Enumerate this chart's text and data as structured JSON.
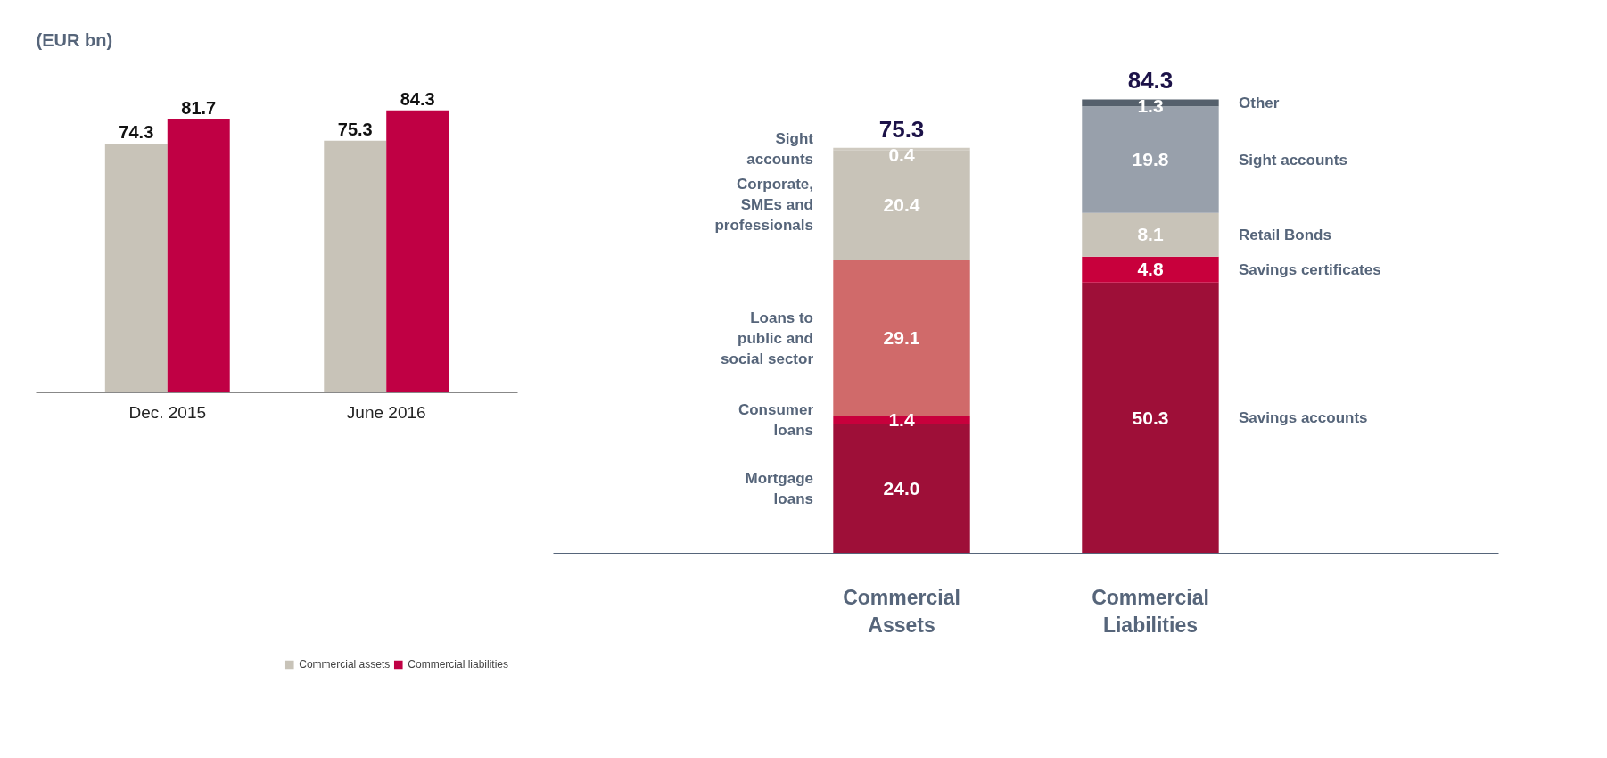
{
  "chart_data": [
    {
      "type": "bar",
      "title": "(EUR bn)",
      "categories": [
        "Dec. 2015",
        "June 2016"
      ],
      "series": [
        {
          "name": "Commercial assets",
          "color": "#c8c3b8",
          "values": [
            74.3,
            75.3
          ]
        },
        {
          "name": "Commercial liabilities",
          "color": "#c00044",
          "values": [
            81.7,
            84.3
          ]
        }
      ],
      "data_labels": true,
      "legend": "bottom",
      "grid": false
    },
    {
      "type": "bar",
      "stacked": true,
      "categories": [
        "Commercial Assets",
        "Commercial Liabilities"
      ],
      "series": [
        {
          "name": "Mortgage loans",
          "color": "#9e0f38",
          "values": [
            24.0,
            null
          ],
          "value_labels": [
            "24.0",
            null
          ]
        },
        {
          "name": "Consumer loans",
          "color": "#c8003c",
          "values": [
            1.4,
            null
          ],
          "value_labels": [
            "1.4",
            null
          ]
        },
        {
          "name": "Loans to public and social sector",
          "color": "#d06a6a",
          "values": [
            29.1,
            null
          ],
          "value_labels": [
            "29.1",
            null
          ]
        },
        {
          "name": "Corporate, SMEs and professionals",
          "color": "#c8c3b8",
          "values": [
            20.4,
            null
          ],
          "value_labels": [
            "20.4",
            null
          ]
        },
        {
          "name": "Sight accounts",
          "color": "#cfcac0",
          "values": [
            0.4,
            null
          ],
          "value_labels": [
            "0.4",
            null
          ]
        },
        {
          "name": "Savings accounts",
          "color": "#9e0f38",
          "values": [
            null,
            50.3
          ],
          "value_labels": [
            null,
            "50.3"
          ]
        },
        {
          "name": "Savings certificates",
          "color": "#c8003c",
          "values": [
            null,
            4.8
          ],
          "value_labels": [
            null,
            "4.8"
          ]
        },
        {
          "name": "Retail Bonds",
          "color": "#c8c3b8",
          "values": [
            null,
            8.1
          ],
          "value_labels": [
            null,
            "8.1"
          ]
        },
        {
          "name": "Sight accounts",
          "color": "#98a0ab",
          "values": [
            null,
            19.8
          ],
          "value_labels": [
            null,
            "19.8"
          ]
        },
        {
          "name": "Other",
          "color": "#55606c",
          "values": [
            null,
            1.3
          ],
          "value_labels": [
            null,
            "1.3"
          ]
        }
      ],
      "totals": [
        "75.3",
        "84.3"
      ],
      "grid": false
    }
  ]
}
